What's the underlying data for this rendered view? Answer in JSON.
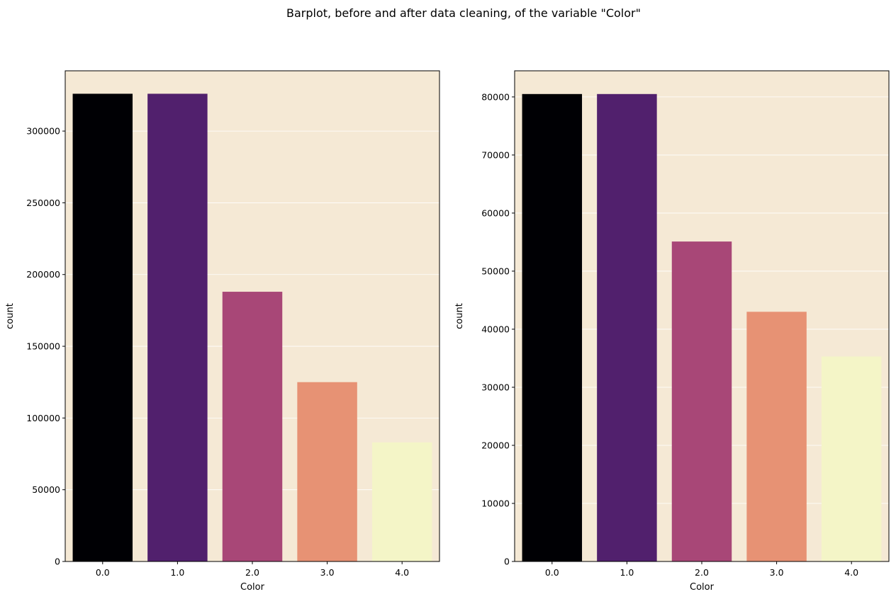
{
  "suptitle": "Barplot, before and after data cleaning, of the variable \"Color\"",
  "colors": {
    "plot_background": "#f5e9d5",
    "grid": "#ffffff",
    "bars": [
      "#000004",
      "#51206d",
      "#a84777",
      "#e79274",
      "#f4f5c7"
    ]
  },
  "chart_data": [
    {
      "type": "bar",
      "title": "",
      "xlabel": "Color",
      "ylabel": "count",
      "categories": [
        "0.0",
        "1.0",
        "2.0",
        "3.0",
        "4.0"
      ],
      "values": [
        326000,
        326000,
        188000,
        125000,
        83000
      ],
      "ylim": [
        0,
        342000
      ],
      "yticks": [
        0,
        50000,
        100000,
        150000,
        200000,
        250000,
        300000
      ],
      "ytick_labels": [
        "0",
        "50000",
        "100000",
        "150000",
        "200000",
        "250000",
        "300000"
      ],
      "grid": "horizontal"
    },
    {
      "type": "bar",
      "title": "",
      "xlabel": "Color",
      "ylabel": "count",
      "categories": [
        "0.0",
        "1.0",
        "2.0",
        "3.0",
        "4.0"
      ],
      "values": [
        80500,
        80500,
        55100,
        43000,
        35300
      ],
      "ylim": [
        0,
        84500
      ],
      "yticks": [
        0,
        10000,
        20000,
        30000,
        40000,
        50000,
        60000,
        70000,
        80000
      ],
      "ytick_labels": [
        "0",
        "10000",
        "20000",
        "30000",
        "40000",
        "50000",
        "60000",
        "70000",
        "80000"
      ],
      "grid": "horizontal"
    }
  ]
}
